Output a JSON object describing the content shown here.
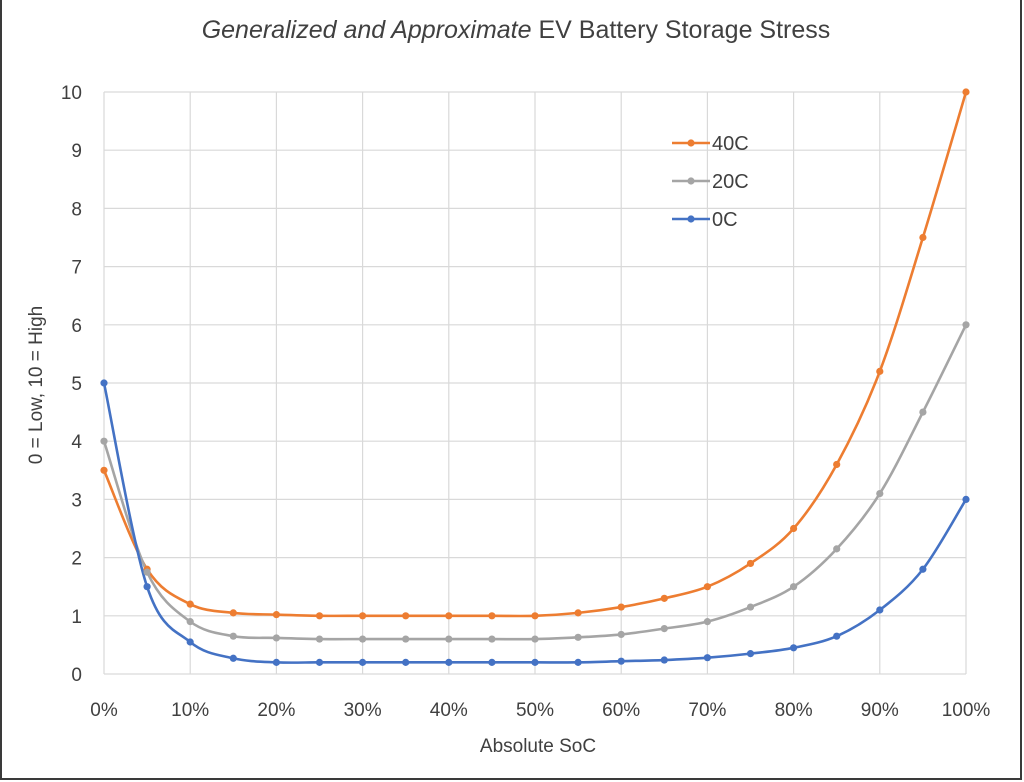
{
  "chart_data": {
    "type": "line",
    "title_italic": "Generalized and Approximate",
    "title_rest": " EV Battery Storage Stress",
    "xlabel": "Absolute SoC",
    "ylabel": "0 = Low, 10 = High",
    "x": [
      0,
      5,
      10,
      15,
      20,
      25,
      30,
      35,
      40,
      45,
      50,
      55,
      60,
      65,
      70,
      75,
      80,
      85,
      90,
      95,
      100
    ],
    "xticks": [
      0,
      10,
      20,
      30,
      40,
      50,
      60,
      70,
      80,
      90,
      100
    ],
    "xtick_labels": [
      "0%",
      "10%",
      "20%",
      "30%",
      "40%",
      "50%",
      "60%",
      "70%",
      "80%",
      "90%",
      "100%"
    ],
    "xlim": [
      0,
      100
    ],
    "ylim": [
      0,
      10
    ],
    "yticks": [
      0,
      1,
      2,
      3,
      4,
      5,
      6,
      7,
      8,
      9,
      10
    ],
    "ytick_labels": [
      "0",
      "1",
      "2",
      "3",
      "4",
      "5",
      "6",
      "7",
      "8",
      "9",
      "10"
    ],
    "grid": true,
    "legend_position": "top-right",
    "series": [
      {
        "name": "40C",
        "color": "#ED7D31",
        "values": [
          3.5,
          1.8,
          1.2,
          1.05,
          1.02,
          1.0,
          1.0,
          1.0,
          1.0,
          1.0,
          1.0,
          1.05,
          1.15,
          1.3,
          1.5,
          1.9,
          2.5,
          3.6,
          5.2,
          7.5,
          10.0
        ]
      },
      {
        "name": "20C",
        "color": "#A5A5A5",
        "values": [
          4.0,
          1.75,
          0.9,
          0.65,
          0.62,
          0.6,
          0.6,
          0.6,
          0.6,
          0.6,
          0.6,
          0.63,
          0.68,
          0.78,
          0.9,
          1.15,
          1.5,
          2.15,
          3.1,
          4.5,
          6.0
        ]
      },
      {
        "name": "0C",
        "color": "#4472C4",
        "values": [
          5.0,
          1.5,
          0.55,
          0.27,
          0.2,
          0.2,
          0.2,
          0.2,
          0.2,
          0.2,
          0.2,
          0.2,
          0.22,
          0.24,
          0.28,
          0.35,
          0.45,
          0.65,
          1.1,
          1.8,
          3.0
        ]
      }
    ]
  }
}
